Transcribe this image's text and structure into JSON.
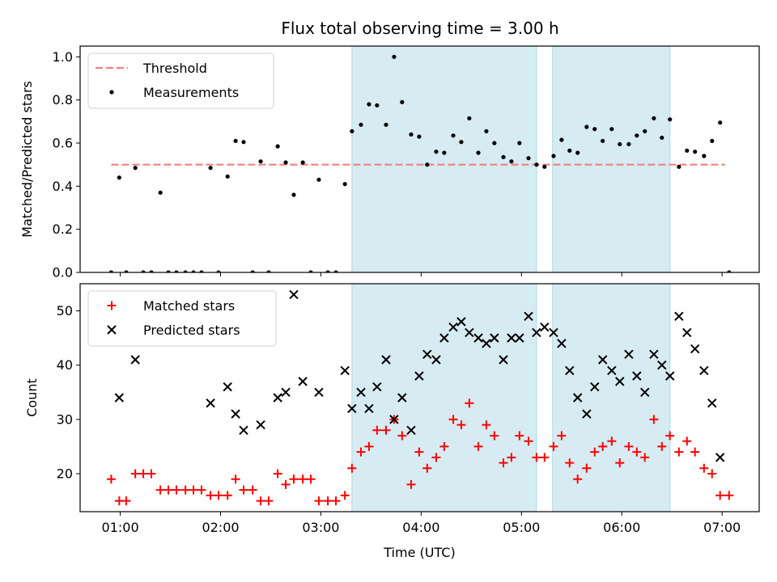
{
  "title": "Flux total observing time = 3.00 h",
  "colors": {
    "threshold": "#f08080",
    "measurement": "#000000",
    "matched": "#ff0000",
    "predicted": "#000000",
    "span": "#add8e6"
  },
  "chart_data": [
    {
      "type": "scatter",
      "ylabel": "Matched/Predicted stars",
      "xlabel": "",
      "xlim": [
        0.6,
        7.37
      ],
      "ylim": [
        0.0,
        1.05
      ],
      "xticks": [
        1,
        2,
        3,
        4,
        5,
        6,
        7
      ],
      "xtick_labels": [
        "01:00",
        "02:00",
        "03:00",
        "04:00",
        "05:00",
        "06:00",
        "07:00"
      ],
      "xtick_labels_shown": false,
      "yticks": [
        0.0,
        0.2,
        0.4,
        0.6,
        0.8,
        1.0
      ],
      "ytick_labels": [
        "0.0",
        "0.2",
        "0.4",
        "0.6",
        "0.8",
        "1.0"
      ],
      "legend_position": "upper-left",
      "shaded_spans": [
        [
          3.31,
          5.15
        ],
        [
          5.31,
          6.48
        ]
      ],
      "threshold": {
        "name": "Threshold",
        "y": 0.5,
        "x": [
          0.91,
          7.03
        ]
      },
      "series": [
        {
          "name": "Measurements",
          "marker": "dot",
          "x": [
            0.91,
            0.99,
            1.06,
            1.15,
            1.23,
            1.31,
            1.4,
            1.48,
            1.56,
            1.65,
            1.73,
            1.81,
            1.9,
            1.98,
            2.07,
            2.15,
            2.23,
            2.32,
            2.4,
            2.48,
            2.57,
            2.65,
            2.73,
            2.82,
            2.9,
            2.98,
            3.07,
            3.15,
            3.24,
            3.31,
            3.4,
            3.48,
            3.56,
            3.65,
            3.73,
            3.81,
            3.9,
            3.98,
            4.06,
            4.15,
            4.23,
            4.32,
            4.4,
            4.48,
            4.57,
            4.65,
            4.73,
            4.82,
            4.9,
            4.98,
            5.07,
            5.15,
            5.23,
            5.32,
            5.4,
            5.48,
            5.56,
            5.65,
            5.73,
            5.81,
            5.9,
            5.98,
            6.07,
            6.15,
            6.23,
            6.32,
            6.4,
            6.48,
            6.57,
            6.65,
            6.73,
            6.82,
            6.9,
            6.98,
            7.07
          ],
          "y": [
            0.0,
            0.44,
            0.0,
            0.485,
            0.0,
            0.0,
            0.37,
            0.0,
            0.0,
            0.0,
            0.0,
            0.0,
            0.485,
            0.0,
            0.445,
            0.61,
            0.605,
            0.0,
            0.515,
            0.0,
            0.585,
            0.51,
            0.36,
            0.51,
            0.0,
            0.43,
            0.0,
            0.0,
            0.41,
            0.655,
            0.685,
            0.78,
            0.775,
            0.685,
            1.0,
            0.79,
            0.64,
            0.63,
            0.5,
            0.56,
            0.555,
            0.635,
            0.605,
            0.715,
            0.555,
            0.655,
            0.6,
            0.535,
            0.515,
            0.6,
            0.53,
            0.5,
            0.49,
            0.54,
            0.615,
            0.565,
            0.555,
            0.675,
            0.665,
            0.61,
            0.665,
            0.595,
            0.595,
            0.635,
            0.655,
            0.715,
            0.625,
            0.71,
            0.49,
            0.565,
            0.56,
            0.54,
            0.61,
            0.695,
            0.0
          ]
        }
      ]
    },
    {
      "type": "scatter",
      "ylabel": "Count",
      "xlabel": "Time (UTC)",
      "xlim": [
        0.6,
        7.37
      ],
      "ylim": [
        13,
        55
      ],
      "xticks": [
        1,
        2,
        3,
        4,
        5,
        6,
        7
      ],
      "xtick_labels": [
        "01:00",
        "02:00",
        "03:00",
        "04:00",
        "05:00",
        "06:00",
        "07:00"
      ],
      "yticks": [
        20,
        30,
        40,
        50
      ],
      "ytick_labels": [
        "20",
        "30",
        "40",
        "50"
      ],
      "legend_position": "upper-left",
      "shaded_spans": [
        [
          3.31,
          5.15
        ],
        [
          5.31,
          6.48
        ]
      ],
      "series": [
        {
          "name": "Matched stars",
          "marker": "plus",
          "x": [
            0.91,
            0.99,
            1.06,
            1.15,
            1.23,
            1.31,
            1.4,
            1.48,
            1.56,
            1.65,
            1.73,
            1.81,
            1.9,
            1.98,
            2.07,
            2.15,
            2.23,
            2.32,
            2.4,
            2.48,
            2.57,
            2.65,
            2.73,
            2.82,
            2.9,
            2.98,
            3.07,
            3.15,
            3.24,
            3.31,
            3.4,
            3.48,
            3.56,
            3.65,
            3.73,
            3.81,
            3.9,
            3.98,
            4.06,
            4.15,
            4.23,
            4.32,
            4.4,
            4.48,
            4.57,
            4.65,
            4.73,
            4.82,
            4.9,
            4.98,
            5.07,
            5.15,
            5.23,
            5.32,
            5.4,
            5.48,
            5.56,
            5.65,
            5.73,
            5.81,
            5.9,
            5.98,
            6.07,
            6.15,
            6.23,
            6.32,
            6.4,
            6.48,
            6.57,
            6.65,
            6.73,
            6.82,
            6.9,
            6.98,
            7.07
          ],
          "y": [
            19,
            15,
            15,
            20,
            20,
            20,
            17,
            17,
            17,
            17,
            17,
            17,
            16,
            16,
            16,
            19,
            17,
            17,
            15,
            15,
            20,
            18,
            19,
            19,
            19,
            15,
            15,
            15,
            16,
            21,
            24,
            25,
            28,
            28,
            30,
            27,
            18,
            24,
            21,
            23,
            25,
            30,
            29,
            33,
            25,
            29,
            27,
            22,
            23,
            27,
            26,
            23,
            23,
            25,
            27,
            22,
            19,
            21,
            24,
            25,
            26,
            22,
            25,
            24,
            23,
            30,
            25,
            27,
            24,
            26,
            24,
            21,
            20,
            16,
            16
          ]
        },
        {
          "name": "Predicted stars",
          "marker": "x",
          "x": [
            0.99,
            1.15,
            1.9,
            2.07,
            2.15,
            2.23,
            2.4,
            2.57,
            2.65,
            2.73,
            2.82,
            2.98,
            3.24,
            3.31,
            3.4,
            3.48,
            3.56,
            3.65,
            3.73,
            3.81,
            3.9,
            3.98,
            4.06,
            4.15,
            4.23,
            4.32,
            4.4,
            4.48,
            4.57,
            4.65,
            4.73,
            4.82,
            4.9,
            4.98,
            5.07,
            5.15,
            5.23,
            5.32,
            5.4,
            5.48,
            5.56,
            5.65,
            5.73,
            5.81,
            5.9,
            5.98,
            6.07,
            6.15,
            6.23,
            6.32,
            6.4,
            6.48,
            6.57,
            6.65,
            6.73,
            6.82,
            6.9,
            6.98
          ],
          "y": [
            34,
            41,
            33,
            36,
            31,
            28,
            29,
            34,
            35,
            53,
            37,
            35,
            39,
            32,
            35,
            32,
            36,
            41,
            30,
            34,
            28,
            38,
            42,
            41,
            45,
            47,
            48,
            46,
            45,
            44,
            45,
            41,
            45,
            45,
            49,
            46,
            47,
            46,
            44,
            39,
            34,
            31,
            36,
            41,
            39,
            37,
            42,
            38,
            35,
            42,
            40,
            38,
            49,
            46,
            43,
            39,
            33,
            23
          ]
        }
      ]
    }
  ]
}
